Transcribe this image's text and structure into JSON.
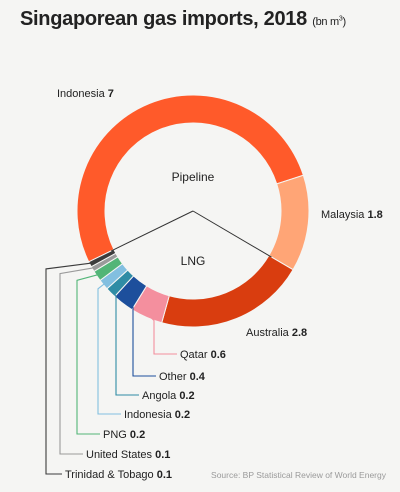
{
  "title": "Singaporean gas imports, 2018",
  "unit_text": "(bn m",
  "unit_superscript": "3",
  "unit_close": ")",
  "source": "Source: BP Statistical Review of World Energy",
  "chart_data": {
    "type": "pie",
    "donut": true,
    "unit": "bn m3",
    "groups": [
      {
        "label": "Pipeline",
        "members": [
          "Indonesia",
          "Malaysia"
        ]
      },
      {
        "label": "LNG",
        "members": [
          "Australia",
          "Qatar",
          "Other",
          "Angola",
          "Indonesia",
          "PNG",
          "United States",
          "Trinidad & Tobago"
        ]
      }
    ],
    "slices": [
      {
        "label": "Indonesia",
        "value": 7,
        "value_text": "7",
        "color": "#ff5a2a",
        "group": "Pipeline"
      },
      {
        "label": "Malaysia",
        "value": 1.8,
        "value_text": "1.8",
        "color": "#ffa576",
        "group": "Pipeline"
      },
      {
        "label": "Australia",
        "value": 2.8,
        "value_text": "2.8",
        "color": "#d93d0f",
        "group": "LNG"
      },
      {
        "label": "Qatar",
        "value": 0.6,
        "value_text": "0.6",
        "color": "#f48f9e",
        "group": "LNG"
      },
      {
        "label": "Other",
        "value": 0.4,
        "value_text": "0.4",
        "color": "#1d4f9c",
        "group": "LNG"
      },
      {
        "label": "Angola",
        "value": 0.2,
        "value_text": "0.2",
        "color": "#2f8ca5",
        "group": "LNG"
      },
      {
        "label": "Indonesia",
        "value": 0.2,
        "value_text": "0.2",
        "color": "#82bfe0",
        "group": "LNG"
      },
      {
        "label": "PNG",
        "value": 0.2,
        "value_text": "0.2",
        "color": "#52b577",
        "group": "LNG"
      },
      {
        "label": "United States",
        "value": 0.1,
        "value_text": "0.1",
        "color": "#9a9a9a",
        "group": "LNG"
      },
      {
        "label": "Trinidad & Tobago",
        "value": 0.1,
        "value_text": "0.1",
        "color": "#3c3c3c",
        "group": "LNG"
      }
    ]
  }
}
